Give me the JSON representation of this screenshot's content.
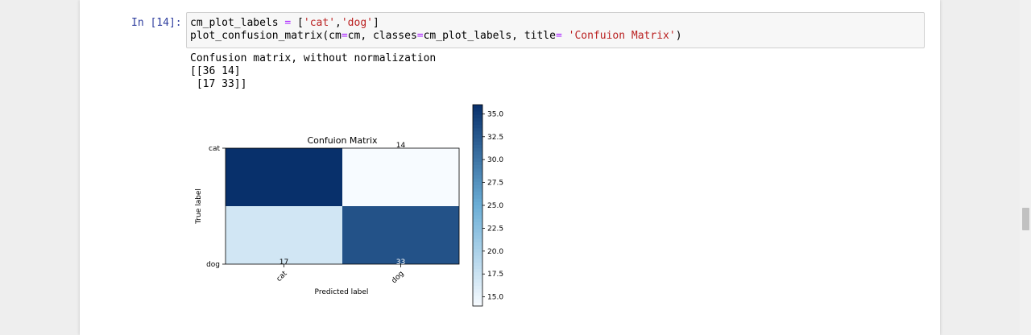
{
  "cell": {
    "prompt": "In [14]:",
    "code_lines": [
      [
        [
          "cm_plot_labels ",
          ""
        ],
        [
          "=",
          "op"
        ],
        [
          " [",
          ""
        ],
        [
          "'cat'",
          "str"
        ],
        [
          ",",
          ""
        ],
        [
          "'dog'",
          "str"
        ],
        [
          "]",
          ""
        ]
      ],
      [
        [
          "plot_confusion_matrix(cm",
          ""
        ],
        [
          "=",
          "op"
        ],
        [
          "cm, classes",
          ""
        ],
        [
          "=",
          "op"
        ],
        [
          "cm_plot_labels, title",
          ""
        ],
        [
          "=",
          "op"
        ],
        [
          " ",
          ""
        ],
        [
          "'Confuion Matrix'",
          "str"
        ],
        [
          ")",
          ""
        ]
      ]
    ]
  },
  "output": {
    "lines": [
      "Confusion matrix, without normalization",
      "[[36 14]",
      " [17 33]]"
    ]
  },
  "chart_data": {
    "type": "heatmap",
    "title": "Confuion Matrix",
    "xlabel": "Predicted label",
    "ylabel": "True label",
    "x_categories": [
      "cat",
      "dog"
    ],
    "y_categories": [
      "cat",
      "dog"
    ],
    "values": [
      [
        36,
        14
      ],
      [
        17,
        33
      ]
    ],
    "colormap": "Blues",
    "colorbar": {
      "min": 14,
      "max": 36,
      "ticks": [
        15.0,
        17.5,
        20.0,
        22.5,
        25.0,
        27.5,
        30.0,
        32.5,
        35.0
      ],
      "tick_labels": [
        "15.0",
        "17.5",
        "20.0",
        "22.5",
        "25.0",
        "27.5",
        "30.0",
        "32.5",
        "35.0"
      ]
    },
    "colors": {
      "low": "#f7fbff",
      "mid": "#6baed6",
      "high": "#08306b"
    }
  }
}
